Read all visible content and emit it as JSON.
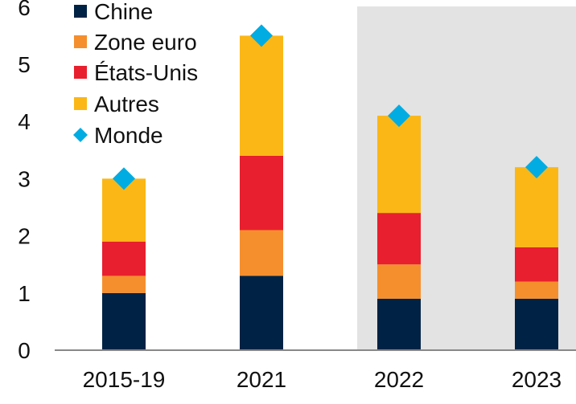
{
  "chart_data": {
    "type": "bar",
    "stacked": true,
    "title": "",
    "xlabel": "",
    "ylabel": "",
    "ylim": [
      0,
      6
    ],
    "yticks": [
      0,
      1,
      2,
      3,
      4,
      5,
      6
    ],
    "grid": false,
    "legend_position": "top-left",
    "categories": [
      "2015-19",
      "2021",
      "2022",
      "2023"
    ],
    "shaded_categories": [
      "2022",
      "2023"
    ],
    "shade_color": "#e3e3e3",
    "series": [
      {
        "name": "Chine",
        "color": "#002244",
        "values": [
          1.0,
          1.3,
          0.9,
          0.9
        ]
      },
      {
        "name": "Zone euro",
        "color": "#f58f2d",
        "values": [
          0.3,
          0.8,
          0.6,
          0.3
        ]
      },
      {
        "name": "États-Unis",
        "color": "#e81f2e",
        "values": [
          0.6,
          1.3,
          0.9,
          0.6
        ]
      },
      {
        "name": "Autres",
        "color": "#fbb716",
        "values": [
          1.1,
          2.1,
          1.7,
          1.4
        ]
      }
    ],
    "marker_series": {
      "name": "Monde",
      "color": "#00ace2",
      "marker": "diamond",
      "values": [
        3.0,
        5.5,
        4.1,
        3.2
      ]
    }
  }
}
